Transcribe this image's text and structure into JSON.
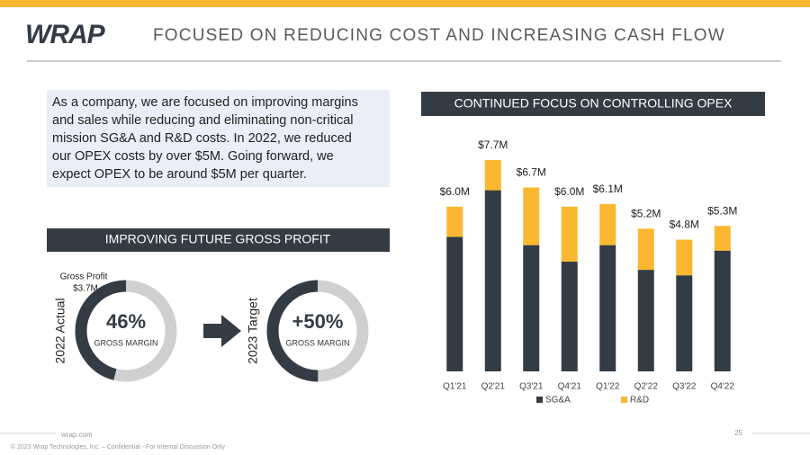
{
  "header": {
    "logo": "WRAP",
    "title": "FOCUSED ON REDUCING COST AND INCREASING CASH FLOW"
  },
  "intro": {
    "lines": [
      "As a company, we are focused on improving margins",
      "and sales while reducing and eliminating non-critical",
      "mission SG&A and R&D costs.  In 2022, we reduced",
      "our OPEX costs by over $5M.  Going forward, we",
      "expect  OPEX to be around $5M per quarter."
    ]
  },
  "gross_profit": {
    "heading": "IMPROVING FUTURE GROSS PROFIT",
    "note": [
      "Gross Profit",
      "$3.7M"
    ],
    "donuts": [
      {
        "side_label": "2022 Actual",
        "value": 46,
        "label": "46%",
        "caption": "GROSS MARGIN"
      },
      {
        "side_label": "2023 Target",
        "value": 50,
        "label": "+50%",
        "caption": "GROSS MARGIN"
      }
    ]
  },
  "chart_data": {
    "type": "stacked_bar",
    "title": "CONTINUED FOCUS ON CONTROLLING OPEX",
    "categories": [
      "Q1'21",
      "Q2'21",
      "Q3'21",
      "Q4'21",
      "Q1'22",
      "Q2'22",
      "Q3'22",
      "Q4'22"
    ],
    "series": [
      {
        "name": "SG&A",
        "color": "#333c45",
        "values": [
          4.9,
          6.6,
          4.6,
          4.0,
          4.6,
          3.7,
          3.5,
          4.4
        ]
      },
      {
        "name": "R&D",
        "color": "#fbb731",
        "values": [
          1.1,
          1.1,
          2.1,
          2.0,
          1.5,
          1.5,
          1.3,
          0.9
        ]
      }
    ],
    "totals": {
      "values": [
        6.0,
        7.7,
        6.7,
        6.0,
        6.1,
        5.2,
        4.8,
        5.3
      ],
      "value_labels": [
        "$6.0M",
        "$7.7M",
        "$6.7M",
        "$6.0M",
        "$6.1M",
        "$5.2M",
        "$4.8M",
        "$5.3M"
      ]
    },
    "legend": "bottom"
  },
  "footer": {
    "site": "wrap.com",
    "page": "25",
    "copyright": "© 2023 Wrap Technologies, Inc. – Confidential - For Internal Discussion Only"
  }
}
